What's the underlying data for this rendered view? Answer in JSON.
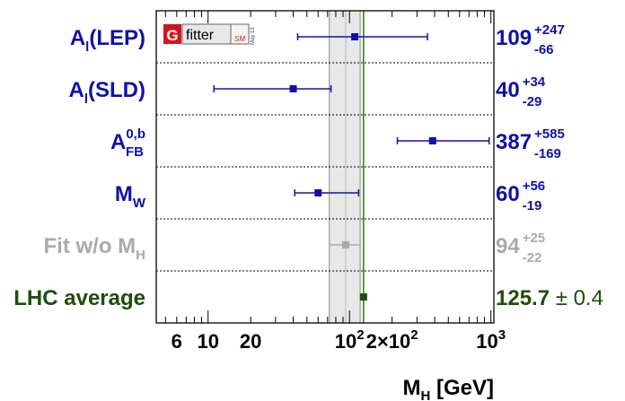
{
  "chart_data": {
    "type": "scatter",
    "title": "",
    "xlabel": {
      "main": "M",
      "sub": "H",
      "rest": " [GeV]"
    },
    "ylabel": "",
    "xscale": "log",
    "xlim": [
      4.3,
      1050
    ],
    "grid": "dotted horizontal separators between rows",
    "legend": "none",
    "logo": {
      "letter": "G",
      "word": "fitter",
      "tag": "SM",
      "date": "May 13"
    },
    "x_tick_labels": [
      {
        "value": 6,
        "text": "6"
      },
      {
        "value": 10,
        "text": "10"
      },
      {
        "value": 20,
        "text": "20"
      },
      {
        "value": 100,
        "base": "10",
        "exp": "2"
      },
      {
        "value": 200,
        "mant": "2×10",
        "exp": "2"
      },
      {
        "value": 1000,
        "base": "10",
        "exp": "3"
      }
    ],
    "fit_band": {
      "center": 94,
      "low": 72,
      "high": 119,
      "color": "#e8e8e8",
      "edge": "#888888"
    },
    "lhc_line": {
      "value": 125.7,
      "color": "#2a7a10"
    },
    "series": [
      {
        "label": {
          "main": "A",
          "sub": "l",
          "sup": "",
          "rest": "(LEP)"
        },
        "value": 109,
        "err_hi": 247,
        "err_lo": 66,
        "val_text": "109",
        "up_text": "+247",
        "down_text": "-66",
        "sym_text": "",
        "color": "#1010a8"
      },
      {
        "label": {
          "main": "A",
          "sub": "l",
          "sup": "",
          "rest": "(SLD)"
        },
        "value": 40,
        "err_hi": 34,
        "err_lo": 29,
        "val_text": "40",
        "up_text": "+34",
        "down_text": "-29",
        "sym_text": "",
        "color": "#1010a8"
      },
      {
        "label": {
          "main": "A",
          "sub": "FB",
          "sup": "0,b",
          "rest": ""
        },
        "value": 387,
        "err_hi": 585,
        "err_lo": 169,
        "val_text": "387",
        "up_text": "+585",
        "down_text": "-169",
        "sym_text": "",
        "color": "#1010a8"
      },
      {
        "label": {
          "main": "M",
          "sub": "W",
          "sup": "",
          "rest": ""
        },
        "value": 60,
        "err_hi": 56,
        "err_lo": 19,
        "val_text": "60",
        "up_text": "+56",
        "down_text": "-19",
        "sym_text": "",
        "color": "#1010a8"
      },
      {
        "label": {
          "main": "Fit w/o M",
          "sub": "H",
          "sup": "",
          "rest": ""
        },
        "value": 94,
        "err_hi": 25,
        "err_lo": 22,
        "val_text": "94",
        "up_text": "+25",
        "down_text": "-22",
        "sym_text": "",
        "color": "#aaaaaa"
      },
      {
        "label": {
          "main": "LHC average",
          "sub": "",
          "sup": "",
          "rest": ""
        },
        "value": 125.7,
        "err_hi": 0.4,
        "err_lo": 0.4,
        "val_text": "125.7",
        "up_text": "",
        "down_text": "",
        "sym_text": "± 0.4",
        "color": "#1f4d0a"
      }
    ]
  }
}
